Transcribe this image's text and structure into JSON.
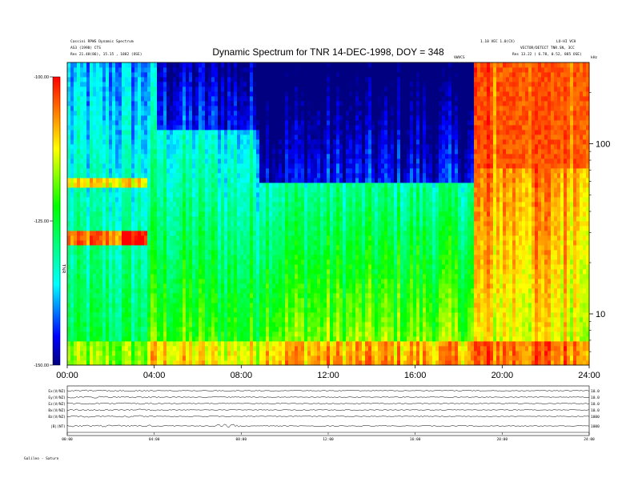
{
  "header": {
    "title": "Dynamic Spectrum for TNR 14-DEC-1998, DOY = 348",
    "left_line1": "Cassini RPWS  Dynamic Spectrum",
    "left_line2": "AS3 (1998) CTS",
    "left_res": "Res    21.48(86), 15.15 , 1882 (OSE)",
    "right_line1": "1.10 VEC 1.0(CX)",
    "right_line2": "LO-HI VCH",
    "right_line3": "VECTOR/DETECT TNR.SN, 3CC",
    "right_res": "Res    13.22 ( 6.78, 0.52, 885 OSE)",
    "center_note": "VWVCS",
    "freq_unit": "kHz"
  },
  "colorbar": {
    "label": "TNR",
    "ticks": [
      "-100.00",
      "-125.00",
      "-150.00"
    ],
    "colors": [
      "#ff0000",
      "#ffff00",
      "#00ff00",
      "#00ffff",
      "#0000ff",
      "#000080"
    ]
  },
  "chart_data": {
    "type": "heatmap",
    "title": "Dynamic Spectrum for TNR 14-DEC-1998, DOY = 348",
    "x_ticks": [
      "00:00",
      "04:00",
      "08:00",
      "12:00",
      "16:00",
      "20:00",
      "24:00"
    ],
    "xlim": [
      0,
      24
    ],
    "y_ticks": [
      "100",
      "10"
    ],
    "y_scale": "log",
    "ylim": [
      5,
      300
    ],
    "color_range": [
      -150,
      -100
    ],
    "features": [
      {
        "x": [
          0,
          3.5
        ],
        "y": 60,
        "level": -112
      },
      {
        "x": [
          0,
          3.5
        ],
        "y": 28,
        "level": -101
      },
      {
        "x": [
          18.8,
          24
        ],
        "y": [
          70,
          300
        ],
        "level": -100
      },
      {
        "x": [
          8.8,
          18.5
        ],
        "y": [
          60,
          300
        ],
        "level": -140
      }
    ]
  },
  "lower_panel": {
    "row_labels": [
      "Ex(V/NZ)",
      "Ey(V/NZ)",
      "Ez(V/NZ)",
      "Bx(V/NZ)",
      "Bz(V/NZ)",
      "|B|(NT)"
    ],
    "row_right_labels": [
      "10.0",
      "10.0",
      "10.0",
      "10.0",
      "1000",
      "1000"
    ],
    "time_ticks": [
      "00:00",
      "04:00",
      "08:00",
      "12:00",
      "16:00",
      "20:00",
      "24:00"
    ],
    "footer": "Galileo - Saturn"
  }
}
